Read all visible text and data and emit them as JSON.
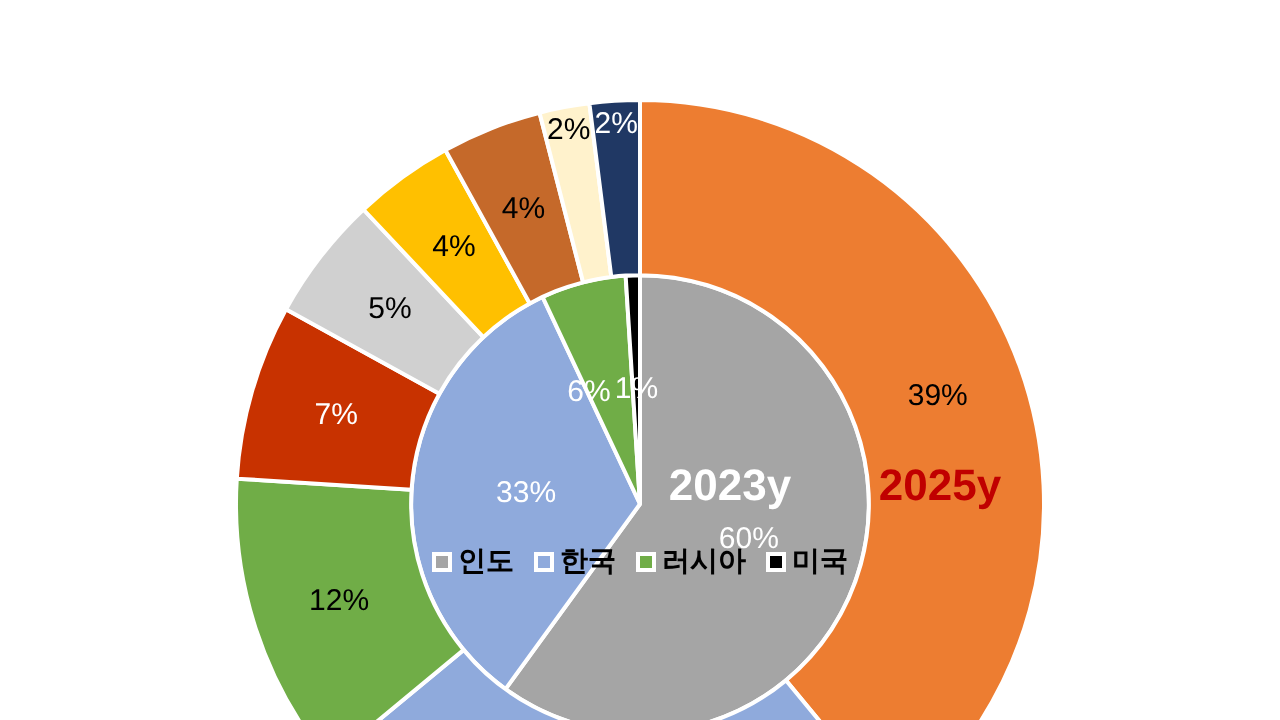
{
  "chart_data": {
    "type": "donut",
    "legend": "bottom left",
    "categories": [
      "인도",
      "한국",
      "러시아",
      "미국",
      null,
      null,
      null,
      null,
      null
    ],
    "series": [
      {
        "name": "2025y",
        "values": [
          39,
          25,
          12,
          7,
          5,
          4,
          4,
          2,
          2
        ],
        "colors": [
          "#ed7d31",
          "#8faadc",
          "#70ad47",
          "#c83200",
          "#d0d0d0",
          "#ffc000",
          "#c5692a",
          "#fff2cc",
          "#203864"
        ],
        "value_labels": [
          "39%",
          null,
          "12%",
          "7%",
          "5%",
          "4%",
          "4%",
          "2%",
          "2%"
        ]
      },
      {
        "name": "2023y",
        "values": [
          60,
          33,
          6,
          1,
          null,
          null,
          null,
          null,
          null
        ],
        "colors": [
          "#a5a5a5",
          "#8faadc",
          "#70ad47",
          "#000000",
          null,
          null,
          null,
          null,
          null
        ],
        "value_labels": [
          "60%",
          "33%",
          "6%",
          "1%",
          null,
          null,
          null,
          null,
          null
        ]
      }
    ]
  }
}
